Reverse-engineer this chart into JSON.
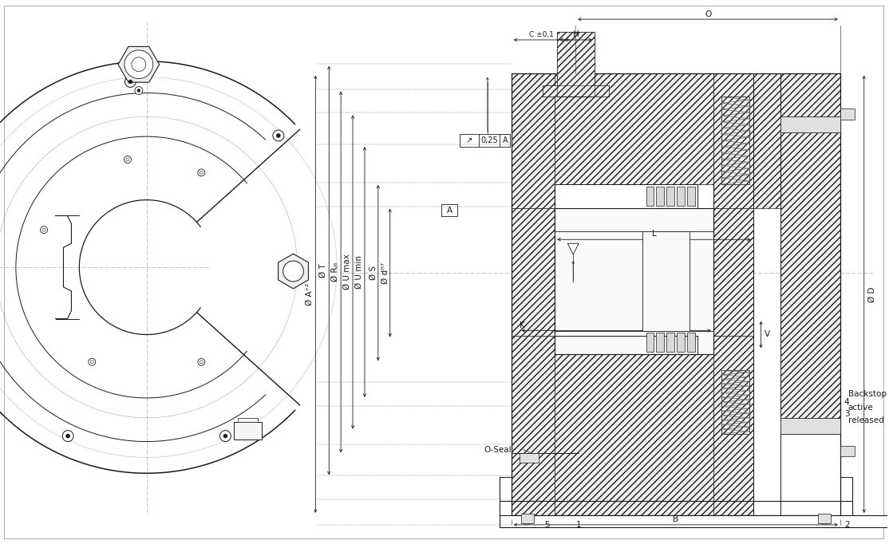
{
  "bg_color": "#ffffff",
  "lc": "#1a1a1a",
  "cc": "#aaaaaa",
  "hc": "#555555",
  "dc": "#1a1a1a",
  "labels": {
    "O": "O",
    "C": "C ±0,1",
    "H": "H",
    "flatness_val": "0,25",
    "flatness_A": "A",
    "A_boxed": "A",
    "phi_A": "Ø A⁺²",
    "phi_T": "Ø T",
    "phi_R": "Ø Rⱼ₆",
    "phi_Umax": "Ø U max",
    "phi_Umin": "Ø U min",
    "phi_S": "Ø S",
    "phi_d": "Ø dᴴ⁷",
    "L": "L",
    "K": "K",
    "V": "V",
    "B": "B",
    "phi_D": "Ø D",
    "OSeal": "O-Seal",
    "backstop": "Backstop",
    "active": "active",
    "released": "released"
  }
}
